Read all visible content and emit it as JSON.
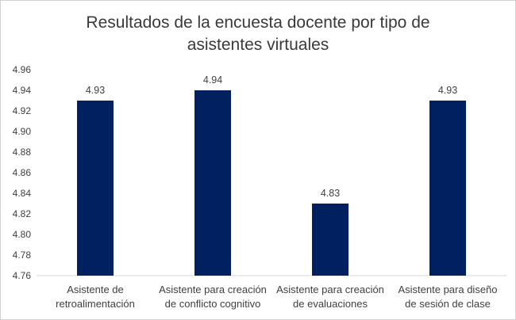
{
  "chart_data": {
    "type": "bar",
    "title_lines": [
      "Resultados de la encuesta docente por tipo de",
      "asistentes virtuales"
    ],
    "categories": [
      [
        "Asistente de",
        "retroalimentación"
      ],
      [
        "Asistente para creación",
        "de conflicto cognitivo"
      ],
      [
        "Asistente para creación",
        "de evaluaciones"
      ],
      [
        "Asistente para diseño",
        "de sesión de clase"
      ]
    ],
    "values": [
      4.93,
      4.94,
      4.83,
      4.93
    ],
    "data_labels": [
      "4.93",
      "4.94",
      "4.83",
      "4.93"
    ],
    "ylim": [
      4.76,
      4.96
    ],
    "yticks": [
      "4.96",
      "4.94",
      "4.92",
      "4.90",
      "4.88",
      "4.86",
      "4.84",
      "4.82",
      "4.80",
      "4.78",
      "4.76"
    ],
    "xlabel": "",
    "ylabel": "",
    "legend": "none",
    "grid": false,
    "bar_color": "#002060"
  }
}
